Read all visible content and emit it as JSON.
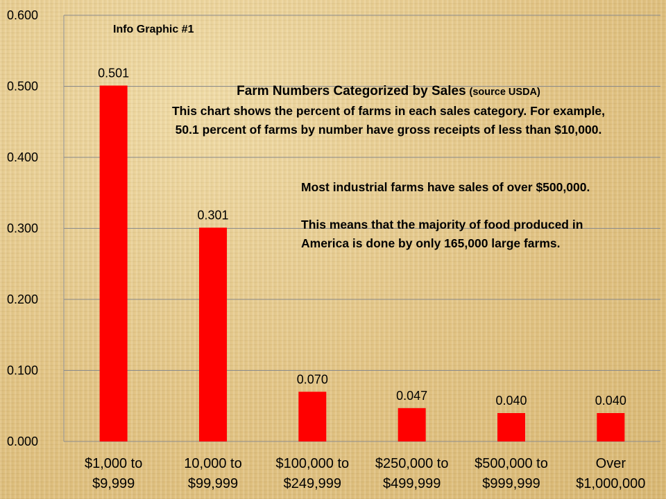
{
  "chart_data": {
    "type": "bar",
    "categories": [
      [
        "$1,000 to",
        "$9,999"
      ],
      [
        "10,000 to",
        "$99,999"
      ],
      [
        "$100,000 to",
        "$249,999"
      ],
      [
        "$250,000 to",
        "$499,999"
      ],
      [
        "$500,000 to",
        "$999,999"
      ],
      [
        "Over",
        "$1,000,000"
      ]
    ],
    "values": [
      0.501,
      0.301,
      0.07,
      0.047,
      0.04,
      0.04
    ],
    "data_labels": [
      "0.501",
      "0.301",
      "0.070",
      "0.047",
      "0.040",
      "0.040"
    ],
    "ylim": [
      0,
      0.6
    ],
    "yticks": [
      "0.000",
      "0.100",
      "0.200",
      "0.300",
      "0.400",
      "0.500",
      "0.600"
    ],
    "grid": true,
    "bar_color": "#ff0000",
    "title": "Farm Numbers Categorized by Sales",
    "xlabel": "",
    "ylabel": ""
  },
  "annotations": {
    "info_graphic": "Info Graphic #1",
    "heading_title": "Farm Numbers Categorized by Sales",
    "heading_source": "(source  USDA)",
    "heading_line_1": "This chart shows the percent of farms in each sales category. For example,",
    "heading_line_2": "50.1 percent of farms by number have gross receipts of less than $10,000.",
    "note_1": "Most industrial farms have sales of over $500,000.",
    "note_2": "This means that the majority of food produced in America is done by only 165,000  large farms."
  }
}
